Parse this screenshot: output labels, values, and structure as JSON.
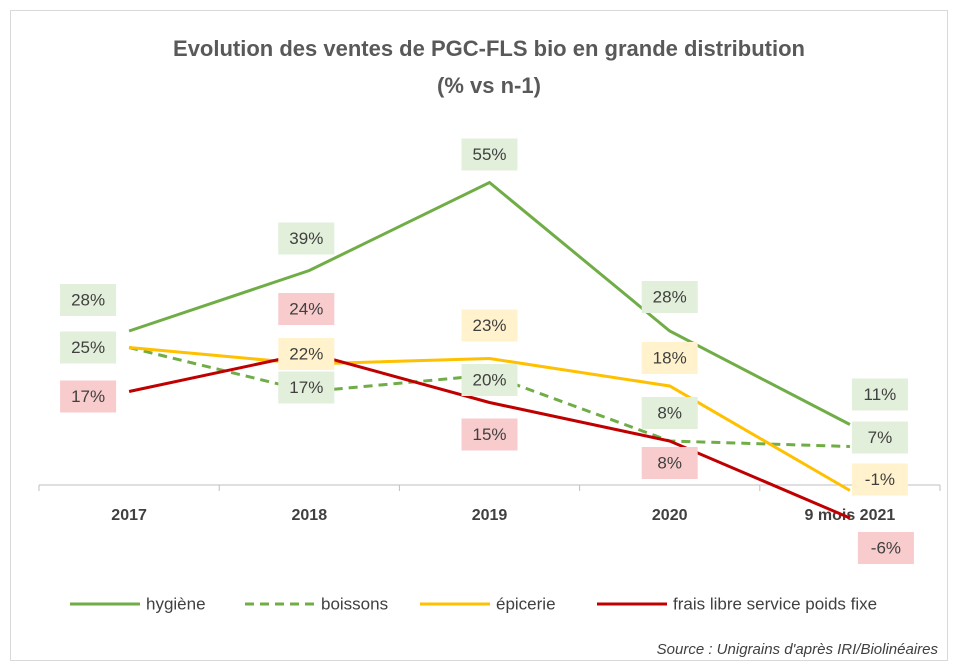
{
  "chart_data": {
    "type": "line",
    "title": "Evolution des ventes de PGC-FLS bio en grande distribution",
    "subtitle": "(% vs n-1)",
    "categories": [
      "2017",
      "2018",
      "2019",
      "2020",
      "9 mois 2021"
    ],
    "ylim": [
      -10,
      60
    ],
    "series": [
      {
        "name": "hygiène",
        "color": "#70ad47",
        "dash": false,
        "label_bg": "#e2efda",
        "values": [
          28,
          39,
          55,
          28,
          11
        ],
        "value_labels": [
          "28%",
          "39%",
          "55%",
          "28%",
          "11%"
        ]
      },
      {
        "name": "boissons",
        "color": "#70ad47",
        "dash": true,
        "label_bg": "#e2efda",
        "values": [
          25,
          17,
          20,
          8,
          7
        ],
        "value_labels": [
          "25%",
          "17%",
          "20%",
          "8%",
          "7%"
        ]
      },
      {
        "name": "épicerie",
        "color": "#ffc000",
        "dash": false,
        "label_bg": "#fff2cc",
        "values": [
          25,
          22,
          23,
          18,
          -1
        ],
        "value_labels": [
          null,
          "22%",
          "23%",
          "18%",
          "-1%"
        ]
      },
      {
        "name": "frais libre service poids fixe",
        "color": "#c00000",
        "dash": false,
        "label_bg": "#f8cbcc",
        "values": [
          17,
          24,
          15,
          8,
          -6
        ],
        "value_labels": [
          "17%",
          "24%",
          "15%",
          "8%",
          "-6%"
        ]
      }
    ],
    "annotations": [
      "Source : Unigrains d'après IRI/Biolinéaires"
    ]
  }
}
